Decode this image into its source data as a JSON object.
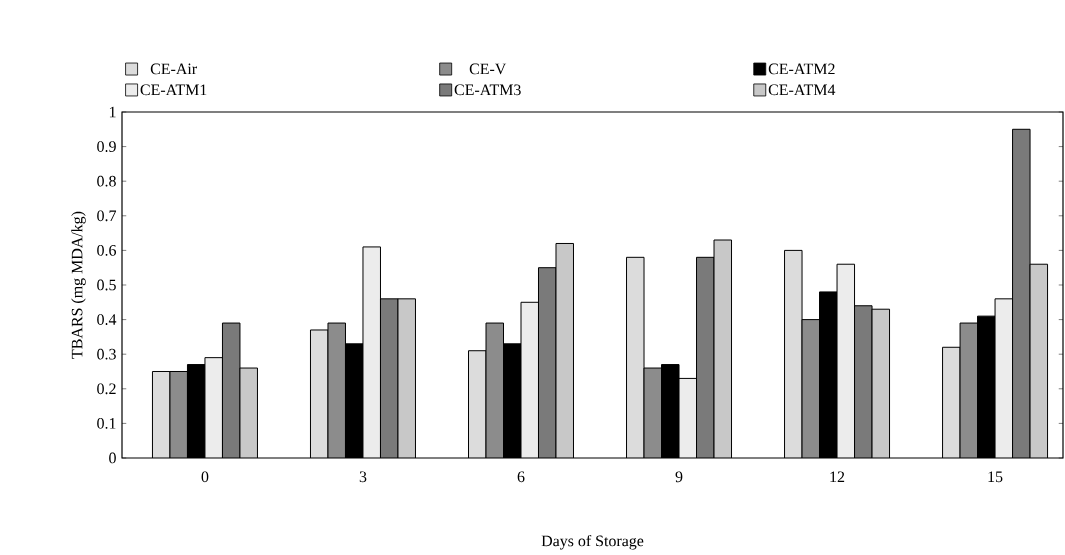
{
  "chart_data": {
    "type": "bar",
    "xlabel": "Days of Storage",
    "ylabel": "TBARS (mg MDA/kg)",
    "categories": [
      "0",
      "3",
      "6",
      "9",
      "12",
      "15"
    ],
    "series": [
      {
        "name": "CE-Air",
        "color": "#dcdcdc",
        "values": [
          0.25,
          0.37,
          0.31,
          0.58,
          0.6,
          0.32
        ]
      },
      {
        "name": "CE-V",
        "color": "#8c8c8c",
        "values": [
          0.25,
          0.39,
          0.39,
          0.26,
          0.4,
          0.39
        ]
      },
      {
        "name": "CE-ATM2",
        "color": "#000000",
        "values": [
          0.27,
          0.33,
          0.33,
          0.27,
          0.48,
          0.41
        ]
      },
      {
        "name": "CE-ATM1",
        "color": "#ececec",
        "values": [
          0.29,
          0.61,
          0.45,
          0.23,
          0.56,
          0.46
        ]
      },
      {
        "name": "CE-ATM3",
        "color": "#7a7a7a",
        "values": [
          0.39,
          0.46,
          0.55,
          0.58,
          0.44,
          0.95
        ]
      },
      {
        "name": "CE-ATM4",
        "color": "#c8c8c8",
        "values": [
          0.26,
          0.46,
          0.62,
          0.63,
          0.43,
          0.56
        ]
      }
    ],
    "ylim": [
      0,
      1
    ],
    "yticks": [
      0,
      0.1,
      0.2,
      0.3,
      0.4,
      0.5,
      0.6,
      0.7,
      0.8,
      0.9,
      1
    ],
    "grid": false,
    "legend": "top"
  }
}
